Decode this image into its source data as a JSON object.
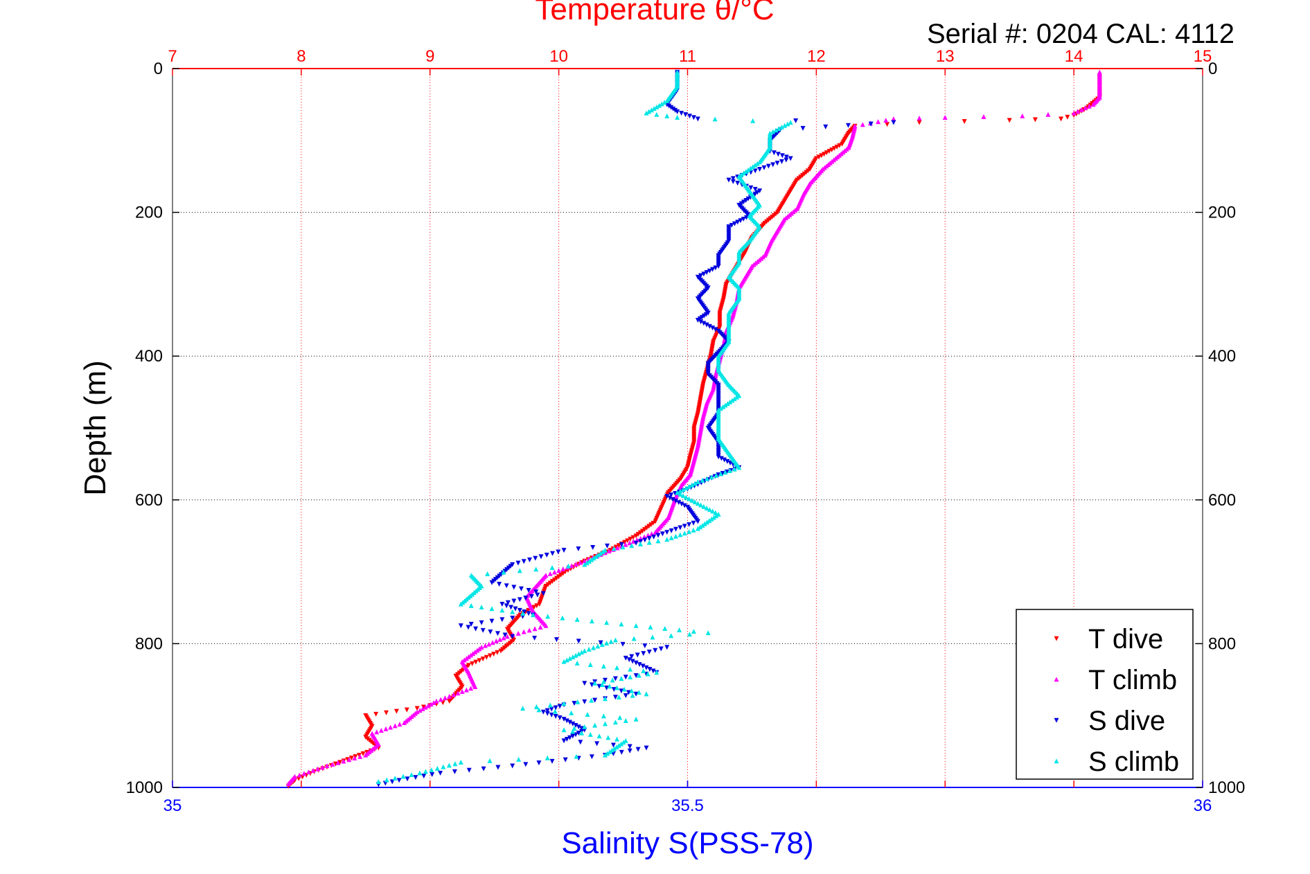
{
  "colors": {
    "temperature": "#ff0000",
    "salinity": "#0000ff",
    "t_dive": "#ff0000",
    "t_climb": "#ff00ff",
    "s_dive": "#0000dd",
    "s_climb": "#00e5e5"
  },
  "chart_data": {
    "type": "scatter",
    "title": "Temperature θ/°C",
    "subtitle": "Serial #: 0204  CAL: 4112",
    "xlabel": "Salinity S(PSS-78)",
    "ylabel": "Depth (m)",
    "ylim": [
      0,
      1000
    ],
    "y_reversed": true,
    "temperature_axis": {
      "lim": [
        7,
        15
      ],
      "ticks": [
        "7",
        "8",
        "9",
        "10",
        "11",
        "12",
        "13",
        "14",
        "15"
      ]
    },
    "salinity_axis": {
      "lim": [
        35,
        36
      ],
      "ticks": [
        "35",
        "35.5",
        "36"
      ]
    },
    "depth_ticks": [
      "0",
      "200",
      "400",
      "600",
      "800",
      "1000"
    ],
    "legend_position": "bottom-right",
    "legend": [
      "T dive",
      "T climb",
      "S dive",
      "S climb"
    ],
    "series": [
      {
        "name": "T dive",
        "axis": "temperature",
        "marker": "triangle-down",
        "points": [
          [
            14.2,
            10
          ],
          [
            14.2,
            40
          ],
          [
            14.1,
            55
          ],
          [
            14.0,
            65
          ],
          [
            13.9,
            70
          ],
          [
            13.5,
            72
          ],
          [
            12.8,
            75
          ],
          [
            12.3,
            80
          ],
          [
            12.25,
            90
          ],
          [
            12.2,
            105
          ],
          [
            12.1,
            115
          ],
          [
            12.0,
            125
          ],
          [
            11.95,
            140
          ],
          [
            11.85,
            155
          ],
          [
            11.8,
            170
          ],
          [
            11.75,
            185
          ],
          [
            11.7,
            200
          ],
          [
            11.6,
            215
          ],
          [
            11.5,
            235
          ],
          [
            11.45,
            255
          ],
          [
            11.4,
            270
          ],
          [
            11.35,
            285
          ],
          [
            11.3,
            300
          ],
          [
            11.28,
            320
          ],
          [
            11.25,
            340
          ],
          [
            11.25,
            360
          ],
          [
            11.2,
            380
          ],
          [
            11.18,
            400
          ],
          [
            11.15,
            420
          ],
          [
            11.12,
            440
          ],
          [
            11.1,
            460
          ],
          [
            11.08,
            480
          ],
          [
            11.05,
            500
          ],
          [
            11.05,
            520
          ],
          [
            11.02,
            540
          ],
          [
            11.0,
            555
          ],
          [
            10.95,
            570
          ],
          [
            10.85,
            590
          ],
          [
            10.8,
            610
          ],
          [
            10.75,
            630
          ],
          [
            10.6,
            650
          ],
          [
            10.4,
            670
          ],
          [
            10.2,
            685
          ],
          [
            10.05,
            700
          ],
          [
            9.9,
            720
          ],
          [
            9.85,
            745
          ],
          [
            9.7,
            760
          ],
          [
            9.6,
            780
          ],
          [
            9.65,
            795
          ],
          [
            9.55,
            810
          ],
          [
            9.3,
            830
          ],
          [
            9.2,
            845
          ],
          [
            9.25,
            860
          ],
          [
            9.15,
            880
          ],
          [
            8.9,
            890
          ],
          [
            8.5,
            900
          ],
          [
            8.55,
            915
          ],
          [
            8.5,
            930
          ],
          [
            8.6,
            945
          ],
          [
            8.45,
            955
          ],
          [
            8.3,
            965
          ],
          [
            8.1,
            978
          ],
          [
            7.95,
            990
          ],
          [
            7.9,
            998
          ]
        ]
      },
      {
        "name": "T climb",
        "axis": "temperature",
        "marker": "triangle-up",
        "points": [
          [
            14.2,
            5
          ],
          [
            14.2,
            20
          ],
          [
            14.2,
            40
          ],
          [
            14.15,
            50
          ],
          [
            14.0,
            62
          ],
          [
            13.6,
            66
          ],
          [
            13.0,
            68
          ],
          [
            12.6,
            70
          ],
          [
            12.3,
            80
          ],
          [
            12.28,
            95
          ],
          [
            12.25,
            110
          ],
          [
            12.15,
            125
          ],
          [
            12.05,
            140
          ],
          [
            11.95,
            160
          ],
          [
            11.9,
            175
          ],
          [
            11.85,
            195
          ],
          [
            11.75,
            210
          ],
          [
            11.7,
            225
          ],
          [
            11.65,
            240
          ],
          [
            11.6,
            260
          ],
          [
            11.5,
            275
          ],
          [
            11.45,
            290
          ],
          [
            11.4,
            305
          ],
          [
            11.38,
            325
          ],
          [
            11.35,
            345
          ],
          [
            11.3,
            365
          ],
          [
            11.28,
            385
          ],
          [
            11.25,
            405
          ],
          [
            11.22,
            425
          ],
          [
            11.2,
            445
          ],
          [
            11.15,
            465
          ],
          [
            11.12,
            485
          ],
          [
            11.1,
            505
          ],
          [
            11.08,
            525
          ],
          [
            11.05,
            545
          ],
          [
            11.02,
            565
          ],
          [
            10.95,
            580
          ],
          [
            10.9,
            600
          ],
          [
            10.85,
            625
          ],
          [
            10.75,
            645
          ],
          [
            10.55,
            660
          ],
          [
            10.2,
            685
          ],
          [
            9.9,
            705
          ],
          [
            9.75,
            735
          ],
          [
            9.8,
            755
          ],
          [
            9.9,
            775
          ],
          [
            9.6,
            790
          ],
          [
            9.4,
            805
          ],
          [
            9.25,
            825
          ],
          [
            9.3,
            840
          ],
          [
            9.35,
            860
          ],
          [
            9.05,
            880
          ],
          [
            8.9,
            895
          ],
          [
            8.8,
            910
          ],
          [
            8.55,
            925
          ],
          [
            8.6,
            940
          ],
          [
            8.5,
            955
          ],
          [
            8.2,
            970
          ],
          [
            7.95,
            985
          ],
          [
            7.9,
            995
          ]
        ]
      },
      {
        "name": "S dive",
        "axis": "salinity",
        "marker": "triangle-down",
        "points": [
          [
            35.49,
            5
          ],
          [
            35.49,
            30
          ],
          [
            35.48,
            50
          ],
          [
            35.49,
            60
          ],
          [
            35.51,
            70
          ],
          [
            35.7,
            75
          ],
          [
            35.59,
            85
          ],
          [
            35.58,
            100
          ],
          [
            35.58,
            115
          ],
          [
            35.6,
            125
          ],
          [
            35.57,
            140
          ],
          [
            35.54,
            155
          ],
          [
            35.57,
            170
          ],
          [
            35.55,
            190
          ],
          [
            35.56,
            205
          ],
          [
            35.54,
            220
          ],
          [
            35.54,
            240
          ],
          [
            35.53,
            260
          ],
          [
            35.53,
            275
          ],
          [
            35.51,
            290
          ],
          [
            35.52,
            305
          ],
          [
            35.51,
            320
          ],
          [
            35.52,
            340
          ],
          [
            35.51,
            350
          ],
          [
            35.53,
            365
          ],
          [
            35.54,
            380
          ],
          [
            35.53,
            395
          ],
          [
            35.52,
            410
          ],
          [
            35.52,
            425
          ],
          [
            35.53,
            440
          ],
          [
            35.53,
            460
          ],
          [
            35.53,
            480
          ],
          [
            35.52,
            500
          ],
          [
            35.53,
            520
          ],
          [
            35.53,
            540
          ],
          [
            35.55,
            555
          ],
          [
            35.53,
            565
          ],
          [
            35.5,
            585
          ],
          [
            35.48,
            595
          ],
          [
            35.5,
            610
          ],
          [
            35.51,
            630
          ],
          [
            35.45,
            660
          ],
          [
            35.38,
            670
          ],
          [
            35.33,
            690
          ],
          [
            35.31,
            715
          ],
          [
            35.36,
            730
          ],
          [
            35.32,
            745
          ],
          [
            35.35,
            760
          ],
          [
            35.28,
            775
          ],
          [
            35.33,
            790
          ],
          [
            35.48,
            805
          ],
          [
            35.44,
            820
          ],
          [
            35.47,
            840
          ],
          [
            35.4,
            855
          ],
          [
            35.45,
            870
          ],
          [
            35.38,
            885
          ],
          [
            35.36,
            895
          ],
          [
            35.38,
            905
          ],
          [
            35.4,
            920
          ],
          [
            35.38,
            935
          ],
          [
            35.46,
            945
          ],
          [
            35.42,
            955
          ],
          [
            35.33,
            970
          ],
          [
            35.26,
            980
          ],
          [
            35.22,
            990
          ],
          [
            35.2,
            996
          ]
        ]
      },
      {
        "name": "S climb",
        "axis": "salinity",
        "marker": "triangle-up",
        "points": [
          [
            35.49,
            5
          ],
          [
            35.49,
            25
          ],
          [
            35.48,
            45
          ],
          [
            35.46,
            62
          ],
          [
            35.49,
            68
          ],
          [
            35.6,
            75
          ],
          [
            35.58,
            90
          ],
          [
            35.58,
            110
          ],
          [
            35.57,
            130
          ],
          [
            35.55,
            150
          ],
          [
            35.56,
            170
          ],
          [
            35.57,
            190
          ],
          [
            35.56,
            205
          ],
          [
            35.57,
            220
          ],
          [
            35.56,
            240
          ],
          [
            35.55,
            255
          ],
          [
            35.55,
            270
          ],
          [
            35.54,
            290
          ],
          [
            35.55,
            305
          ],
          [
            35.55,
            320
          ],
          [
            35.54,
            340
          ],
          [
            35.54,
            360
          ],
          [
            35.54,
            380
          ],
          [
            35.53,
            400
          ],
          [
            35.53,
            420
          ],
          [
            35.54,
            440
          ],
          [
            35.55,
            455
          ],
          [
            35.53,
            475
          ],
          [
            35.53,
            495
          ],
          [
            35.53,
            515
          ],
          [
            35.54,
            535
          ],
          [
            35.55,
            555
          ],
          [
            35.51,
            575
          ],
          [
            35.49,
            590
          ],
          [
            35.51,
            605
          ],
          [
            35.53,
            620
          ],
          [
            35.51,
            640
          ],
          [
            35.48,
            655
          ],
          [
            35.42,
            670
          ],
          [
            35.4,
            690
          ],
          [
            35.29,
            705
          ],
          [
            35.3,
            720
          ],
          [
            35.28,
            745
          ],
          [
            35.35,
            760
          ],
          [
            35.45,
            775
          ],
          [
            35.52,
            785
          ],
          [
            35.43,
            795
          ],
          [
            35.4,
            810
          ],
          [
            35.38,
            825
          ],
          [
            35.47,
            840
          ],
          [
            35.41,
            855
          ],
          [
            35.46,
            870
          ],
          [
            35.34,
            890
          ],
          [
            35.45,
            905
          ],
          [
            35.38,
            920
          ],
          [
            35.44,
            935
          ],
          [
            35.42,
            955
          ],
          [
            35.28,
            965
          ],
          [
            35.24,
            980
          ],
          [
            35.2,
            992
          ]
        ]
      }
    ],
    "series_colors": [
      "#ff0000",
      "#ff00ff",
      "#0000dd",
      "#00e5e5"
    ]
  }
}
